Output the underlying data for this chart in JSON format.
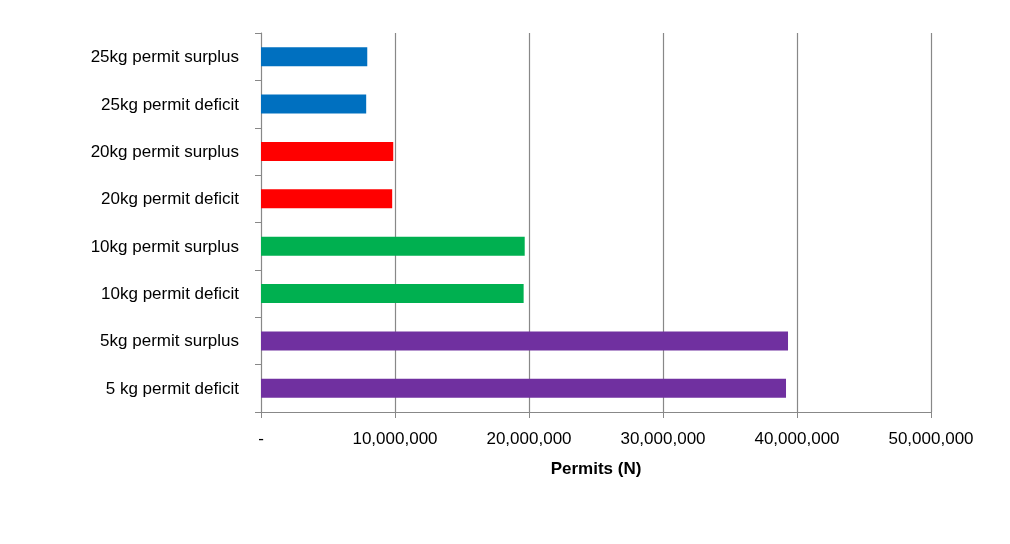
{
  "chart_data": {
    "type": "bar",
    "orientation": "horizontal",
    "xlabel": "Permits (N)",
    "categories": [
      "25kg permit surplus",
      "25kg permit deficit",
      "20kg permit surplus",
      "20kg permit deficit",
      "10kg permit surplus",
      "10kg permit deficit",
      "5kg permit surplus",
      "5 kg permit deficit"
    ],
    "values": [
      7930000,
      7850000,
      9870000,
      9790000,
      19680000,
      19600000,
      39330000,
      39180000
    ],
    "colors": [
      "#0070c0",
      "#0070c0",
      "#ff0000",
      "#ff0000",
      "#00b050",
      "#00b050",
      "#7030a0",
      "#7030a0"
    ],
    "xlim": [
      0,
      50000000
    ],
    "xticks": [
      {
        "value": 0,
        "label": "-"
      },
      {
        "value": 10000000,
        "label": "10,000,000"
      },
      {
        "value": 20000000,
        "label": "20,000,000"
      },
      {
        "value": 30000000,
        "label": "30,000,000"
      },
      {
        "value": 40000000,
        "label": "40,000,000"
      },
      {
        "value": 50000000,
        "label": "50,000,000"
      }
    ],
    "grid": "x"
  }
}
